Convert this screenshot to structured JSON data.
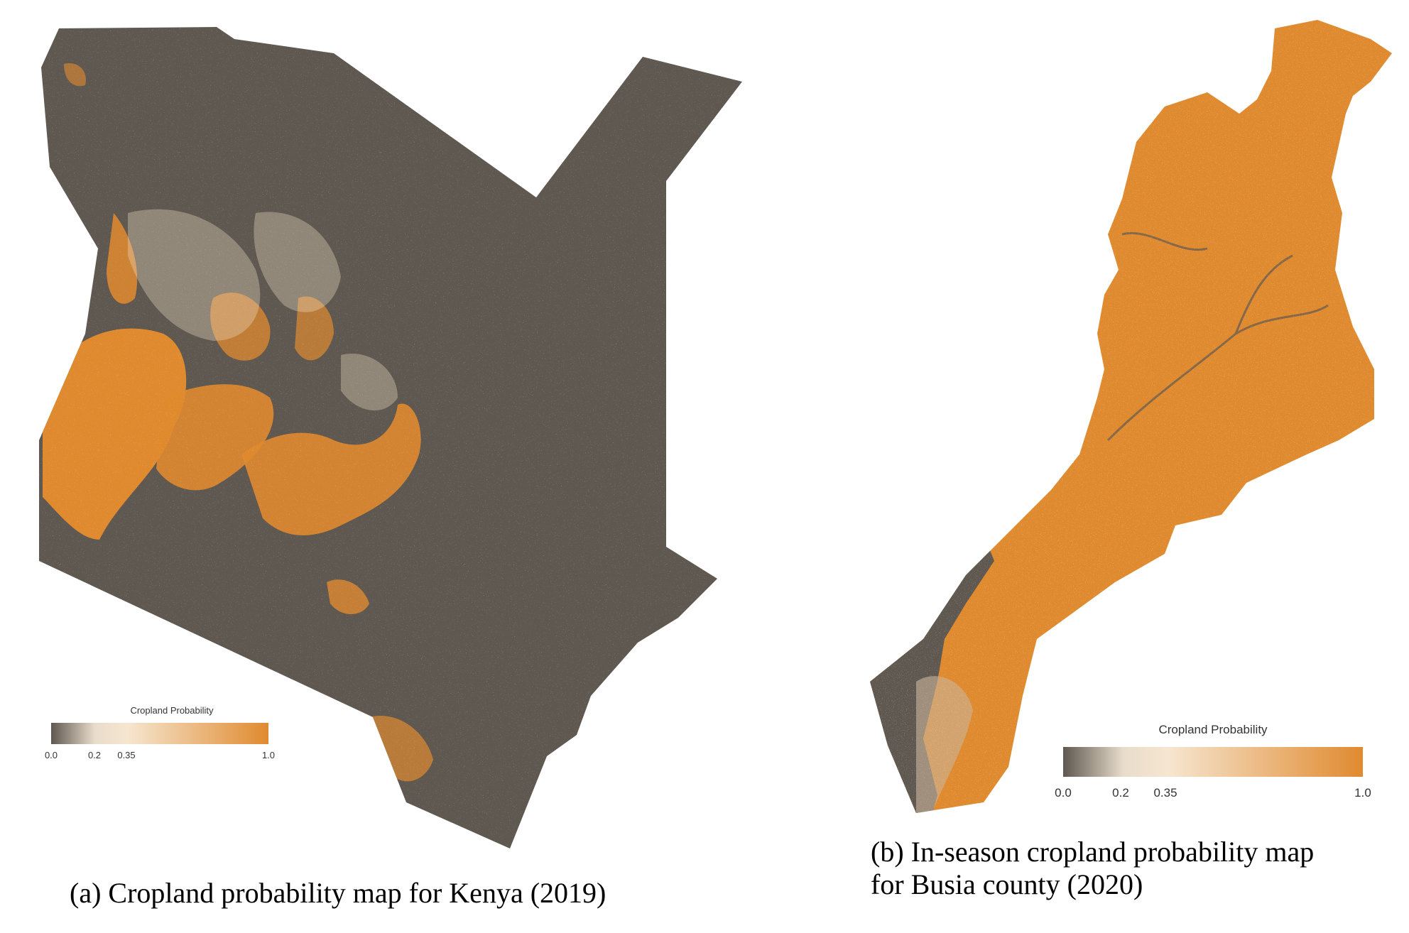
{
  "figure": {
    "panel_a": {
      "caption": "(a) Cropland probability map for Kenya (2019)",
      "legend": {
        "title": "Cropland Probability",
        "ticks": [
          "0.0",
          "0.2",
          "0.35",
          "1.0"
        ]
      }
    },
    "panel_b": {
      "caption_line1": "(b) In-season cropland probability map",
      "caption_line2": "for Busia county (2020)",
      "legend": {
        "title": "Cropland Probability",
        "ticks": [
          "0.0",
          "0.2",
          "0.35",
          "1.0"
        ]
      }
    }
  },
  "colors": {
    "low": "#5f5850",
    "mid": "#f6e6d0",
    "high": "#e08a2f",
    "background": "#ffffff"
  }
}
